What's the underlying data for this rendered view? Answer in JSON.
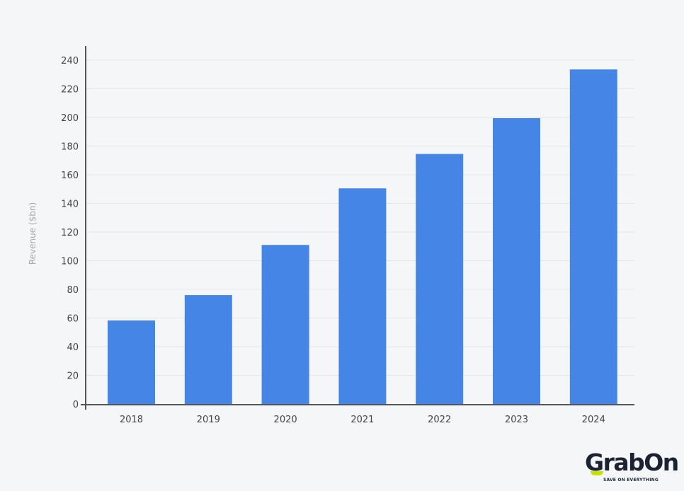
{
  "chart_data": {
    "type": "bar",
    "categories": [
      "2018",
      "2019",
      "2020",
      "2021",
      "2022",
      "2023",
      "2024"
    ],
    "values": [
      58.3,
      76.0,
      111.0,
      150.5,
      174.5,
      199.5,
      233.5
    ],
    "title": "",
    "xlabel": "",
    "ylabel": "Revenue ($bn)",
    "ylim": [
      0,
      240
    ],
    "yticks": [
      0,
      20,
      40,
      60,
      80,
      100,
      120,
      140,
      160,
      180,
      200,
      220,
      240
    ],
    "grid": true,
    "bar_color": "#4585e5"
  },
  "logo": {
    "text": "GrabOn",
    "tagline": "SAVE ON EVERYTHING"
  }
}
